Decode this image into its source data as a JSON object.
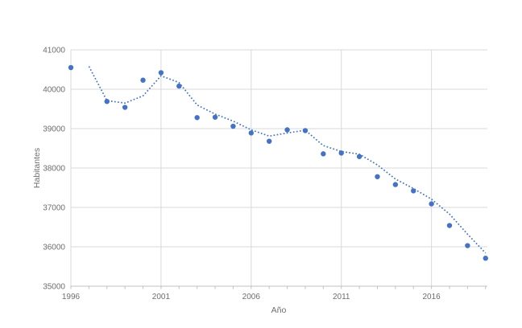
{
  "chart_data": {
    "type": "scatter",
    "title": "",
    "xlabel": "Año",
    "ylabel": "Habitantes",
    "xlim": [
      1996,
      2019.1
    ],
    "ylim": [
      35000,
      41000
    ],
    "x_ticks": [
      1996,
      2001,
      2006,
      2011,
      2016
    ],
    "y_ticks": [
      35000,
      36000,
      37000,
      38000,
      39000,
      40000,
      41000
    ],
    "minor_x_tick_every_year": true,
    "grid": true,
    "legend": "none",
    "series": [
      {
        "id": "points",
        "type": "scatter",
        "color": "#4472C4",
        "marker_radius": 3.2,
        "x": [
          1996,
          1998,
          1999,
          2000,
          2001,
          2002,
          2003,
          2004,
          2005,
          2006,
          2007,
          2008,
          2009,
          2010,
          2011,
          2012,
          2013,
          2014,
          2015,
          2016,
          2017,
          2018,
          2019
        ],
        "y": [
          40550,
          39690,
          39540,
          40230,
          40420,
          40080,
          39280,
          39290,
          39060,
          38890,
          38680,
          38970,
          38950,
          38360,
          38380,
          38290,
          37780,
          37580,
          37420,
          37090,
          36540,
          36030,
          35710
        ]
      },
      {
        "id": "trendline",
        "type": "dotted_line",
        "color": "#4472C4",
        "x": [
          1997,
          1998,
          1999,
          2000,
          2001,
          2002,
          2003,
          2004,
          2005,
          2006,
          2007,
          2008,
          2009,
          2010,
          2011,
          2012,
          2013,
          2014,
          2015,
          2016,
          2017,
          2018,
          2019
        ],
        "y": [
          40580,
          39710,
          39650,
          39830,
          40340,
          40170,
          39600,
          39370,
          39190,
          38970,
          38810,
          38890,
          38960,
          38570,
          38420,
          38350,
          38080,
          37720,
          37480,
          37210,
          36830,
          36320,
          35840
        ]
      }
    ]
  },
  "colors": {
    "background": "#FFFFFF",
    "gridline": "#D9D9D9",
    "axis_line": "#C0C0C0",
    "tick_label": "#6E6E6E",
    "point": "#4472C4"
  }
}
